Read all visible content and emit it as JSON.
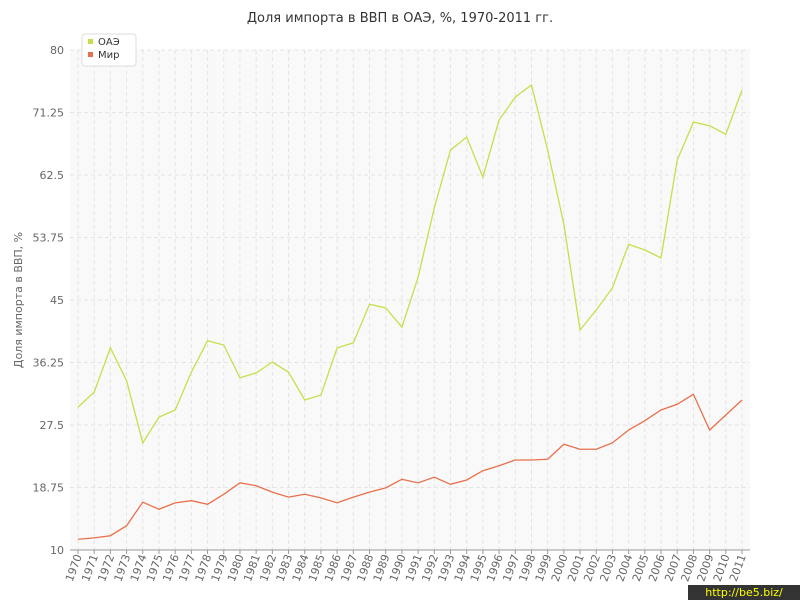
{
  "chart_data": {
    "type": "line",
    "title": "Доля импорта в ВВП в ОАЭ, %, 1970-2011 гг.",
    "y_label": "Доля импорта в ВВП, %",
    "watermark": "http://be5.biz/",
    "legend": "top-left",
    "grid": true,
    "categories": [
      "1970",
      "1971",
      "1972",
      "1973",
      "1974",
      "1975",
      "1976",
      "1977",
      "1978",
      "1979",
      "1980",
      "1981",
      "1982",
      "1983",
      "1984",
      "1985",
      "1986",
      "1987",
      "1988",
      "1989",
      "1990",
      "1991",
      "1992",
      "1993",
      "1994",
      "1995",
      "1996",
      "1997",
      "1998",
      "1999",
      "2000",
      "2001",
      "2002",
      "2003",
      "2004",
      "2005",
      "2006",
      "2007",
      "2008",
      "2009",
      "2010",
      "2011"
    ],
    "ylim": [
      10,
      80
    ],
    "yticks": [
      10,
      18.75,
      27.5,
      36.25,
      45,
      53.75,
      62.5,
      71.25,
      80
    ],
    "series": [
      {
        "name": "ОАЭ",
        "color": "#c3e04b",
        "values": [
          30.0,
          32.1,
          38.3,
          33.7,
          25.0,
          28.6,
          29.6,
          34.9,
          39.3,
          38.7,
          34.1,
          34.8,
          36.3,
          34.9,
          31.0,
          31.7,
          38.3,
          39.0,
          44.4,
          43.9,
          41.2,
          48.2,
          57.9,
          66.0,
          67.8,
          62.2,
          70.2,
          73.4,
          75.1,
          66.0,
          55.6,
          40.8,
          43.6,
          46.7,
          52.8,
          52.0,
          50.9,
          64.6,
          69.9,
          69.4,
          68.2,
          74.4
        ]
      },
      {
        "name": "Мир",
        "color": "#e8704a",
        "values": [
          11.5,
          11.7,
          12.0,
          13.4,
          16.7,
          15.7,
          16.6,
          16.9,
          16.4,
          17.8,
          19.4,
          19.0,
          18.1,
          17.4,
          17.8,
          17.3,
          16.6,
          17.4,
          18.1,
          18.7,
          19.9,
          19.4,
          20.2,
          19.2,
          19.8,
          21.1,
          21.8,
          22.6,
          22.6,
          22.7,
          24.8,
          24.1,
          24.1,
          25.0,
          26.8,
          28.1,
          29.6,
          30.4,
          31.8,
          26.8,
          28.9,
          31.0
        ]
      }
    ]
  }
}
